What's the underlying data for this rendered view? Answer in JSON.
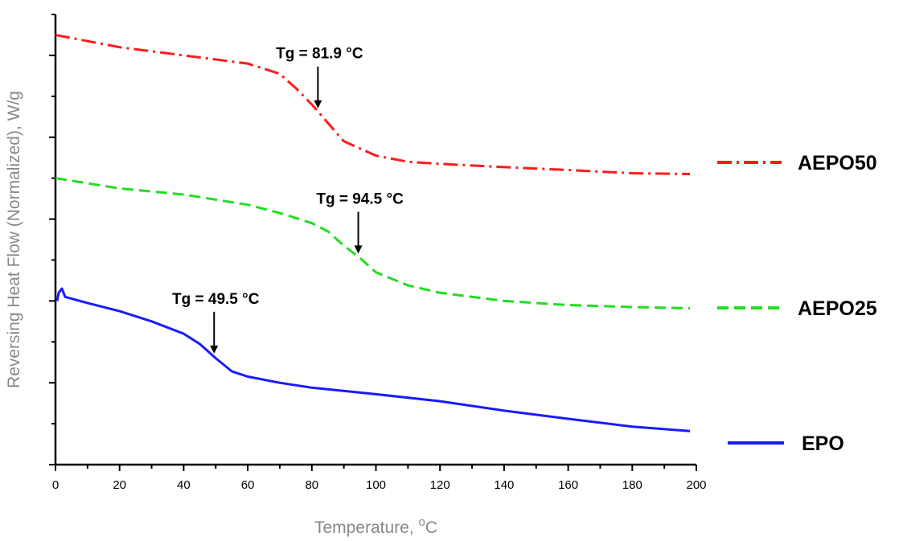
{
  "chart_data": {
    "type": "line",
    "xlabel": "Temperature, ",
    "xlabel_sup": "o",
    "xlabel_unit": "C",
    "ylabel": "Reversing Heat Flow (Normalized), W/g",
    "xlim": [
      0,
      200
    ],
    "x_ticks": [
      "0",
      "20",
      "40",
      "60",
      "80",
      "100",
      "120",
      "140",
      "160",
      "180",
      "200"
    ],
    "y_tick_labels_shown": false,
    "grid": false,
    "legend_placement": "right, beside each series",
    "series": [
      {
        "name": "AEPO50",
        "color": "#ff1a1a",
        "style": "dash-dot",
        "points": [
          [
            0,
            7.5
          ],
          [
            20,
            7.2
          ],
          [
            40,
            7.0
          ],
          [
            60,
            6.8
          ],
          [
            70,
            6.55
          ],
          [
            75,
            6.2
          ],
          [
            80,
            5.8
          ],
          [
            85,
            5.35
          ],
          [
            90,
            4.9
          ],
          [
            100,
            4.55
          ],
          [
            110,
            4.4
          ],
          [
            120,
            4.35
          ],
          [
            140,
            4.27
          ],
          [
            160,
            4.2
          ],
          [
            180,
            4.12
          ],
          [
            198,
            4.1
          ]
        ]
      },
      {
        "name": "AEPO25",
        "color": "#22dd22",
        "style": "dashed",
        "points": [
          [
            0,
            4.0
          ],
          [
            20,
            3.75
          ],
          [
            40,
            3.6
          ],
          [
            60,
            3.35
          ],
          [
            70,
            3.15
          ],
          [
            80,
            2.9
          ],
          [
            85,
            2.7
          ],
          [
            90,
            2.35
          ],
          [
            95,
            2.05
          ],
          [
            100,
            1.7
          ],
          [
            110,
            1.38
          ],
          [
            120,
            1.2
          ],
          [
            140,
            1.0
          ],
          [
            160,
            0.9
          ],
          [
            180,
            0.85
          ],
          [
            198,
            0.82
          ]
        ]
      },
      {
        "name": "EPO",
        "color": "#1a1aff",
        "style": "solid",
        "points": [
          [
            0.5,
            1.0
          ],
          [
            1,
            1.2
          ],
          [
            2,
            1.3
          ],
          [
            3,
            1.1
          ],
          [
            10,
            0.95
          ],
          [
            20,
            0.75
          ],
          [
            30,
            0.5
          ],
          [
            40,
            0.2
          ],
          [
            45,
            -0.05
          ],
          [
            50,
            -0.4
          ],
          [
            55,
            -0.72
          ],
          [
            60,
            -0.85
          ],
          [
            70,
            -1.0
          ],
          [
            80,
            -1.12
          ],
          [
            100,
            -1.28
          ],
          [
            120,
            -1.45
          ],
          [
            140,
            -1.68
          ],
          [
            160,
            -1.88
          ],
          [
            180,
            -2.07
          ],
          [
            198,
            -2.18
          ]
        ]
      }
    ],
    "annotations": [
      {
        "text": "Tg = 81.9 °C",
        "x": 81.9,
        "series": "AEPO50"
      },
      {
        "text": "Tg = 94.5 °C",
        "x": 94.5,
        "series": "AEPO25"
      },
      {
        "text": "Tg = 49.5 °C",
        "x": 49.5,
        "series": "EPO"
      }
    ]
  }
}
